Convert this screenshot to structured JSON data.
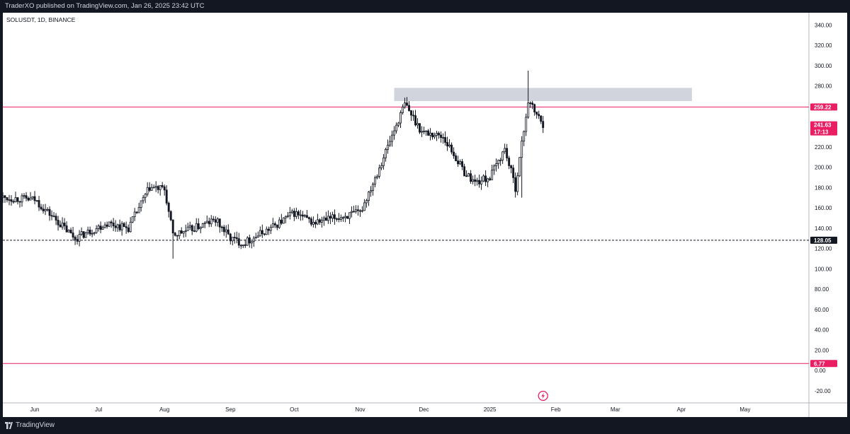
{
  "header": {
    "published_text": "TraderXO published on TradingView.com, Jan 26, 2025 23:42 UTC"
  },
  "symbol_info": "SOLUSDT, 1D, BINANCE",
  "footer": {
    "brand": "TradingView"
  },
  "colors": {
    "frame": "#131722",
    "plot_bg": "#ffffff",
    "candle": "#131722",
    "level_line": "#e91e63",
    "zone_fill": "#d1d4dc",
    "dashed": "#131722",
    "tag_black": "#131722",
    "tag_pink": "#e91e63"
  },
  "icons": [
    "tradingview-logo-icon",
    "lightning-icon"
  ],
  "chart_data": {
    "type": "candlestick",
    "title": "",
    "xlabel": "",
    "ylabel": "",
    "ylim": [
      -32,
      352
    ],
    "y_ticks": [
      "340.00",
      "320.00",
      "300.00",
      "280.00",
      "260.00",
      "240.00",
      "220.00",
      "200.00",
      "180.00",
      "160.00",
      "140.00",
      "120.00",
      "100.00",
      "80.00",
      "60.00",
      "40.00",
      "20.00",
      "0.00",
      "-20.00"
    ],
    "y_tick_values": [
      340,
      320,
      300,
      280,
      260,
      240,
      220,
      200,
      180,
      160,
      140,
      120,
      100,
      80,
      60,
      40,
      20,
      0,
      -20
    ],
    "x_labels": [
      "Jun",
      "Jul",
      "Aug",
      "Sep",
      "Oct",
      "Nov",
      "Dec",
      "2025",
      "Feb",
      "Mar",
      "Apr",
      "May"
    ],
    "x_label_dates": [
      "2024-06-01",
      "2024-07-01",
      "2024-08-01",
      "2024-09-01",
      "2024-10-01",
      "2024-11-01",
      "2024-12-01",
      "2025-01-01",
      "2025-02-01",
      "2025-03-01",
      "2025-04-01",
      "2025-05-01"
    ],
    "x_range": [
      "2024-05-17",
      "2025-05-31"
    ],
    "horizontal_lines": [
      {
        "value": 259.22,
        "label": "259.22",
        "style": "solid",
        "color": "#e91e63"
      },
      {
        "value": 128.05,
        "label": "128.05",
        "style": "dashed",
        "color": "#131722"
      },
      {
        "value": 6.77,
        "label": "6.77",
        "style": "solid",
        "color": "#e91e63"
      }
    ],
    "zone": {
      "from_date": "2024-11-17",
      "to_date": "2025-04-06",
      "low": 265,
      "high": 278
    },
    "last_price": {
      "value": 241.63,
      "label": "241.63",
      "countdown": "17:13"
    },
    "series": [
      {
        "dates": [
          "2024-05-17",
          "2024-06-01",
          "2024-06-10",
          "2024-06-20",
          "2024-06-30",
          "2024-07-05",
          "2024-07-15",
          "2024-07-25",
          "2024-08-01",
          "2024-08-05",
          "2024-08-15",
          "2024-08-25",
          "2024-09-01",
          "2024-09-07",
          "2024-09-20",
          "2024-10-01",
          "2024-10-10",
          "2024-10-20",
          "2024-11-01",
          "2024-11-10",
          "2024-11-22",
          "2024-11-30",
          "2024-12-10",
          "2024-12-20",
          "2024-12-25",
          "2025-01-01",
          "2025-01-08",
          "2025-01-13",
          "2025-01-19",
          "2025-01-26"
        ],
        "values": [
          170,
          168,
          150,
          130,
          140,
          145,
          140,
          180,
          178,
          133,
          140,
          148,
          130,
          125,
          140,
          155,
          145,
          150,
          155,
          200,
          262,
          235,
          230,
          195,
          185,
          190,
          218,
          180,
          265,
          242
        ]
      }
    ]
  }
}
